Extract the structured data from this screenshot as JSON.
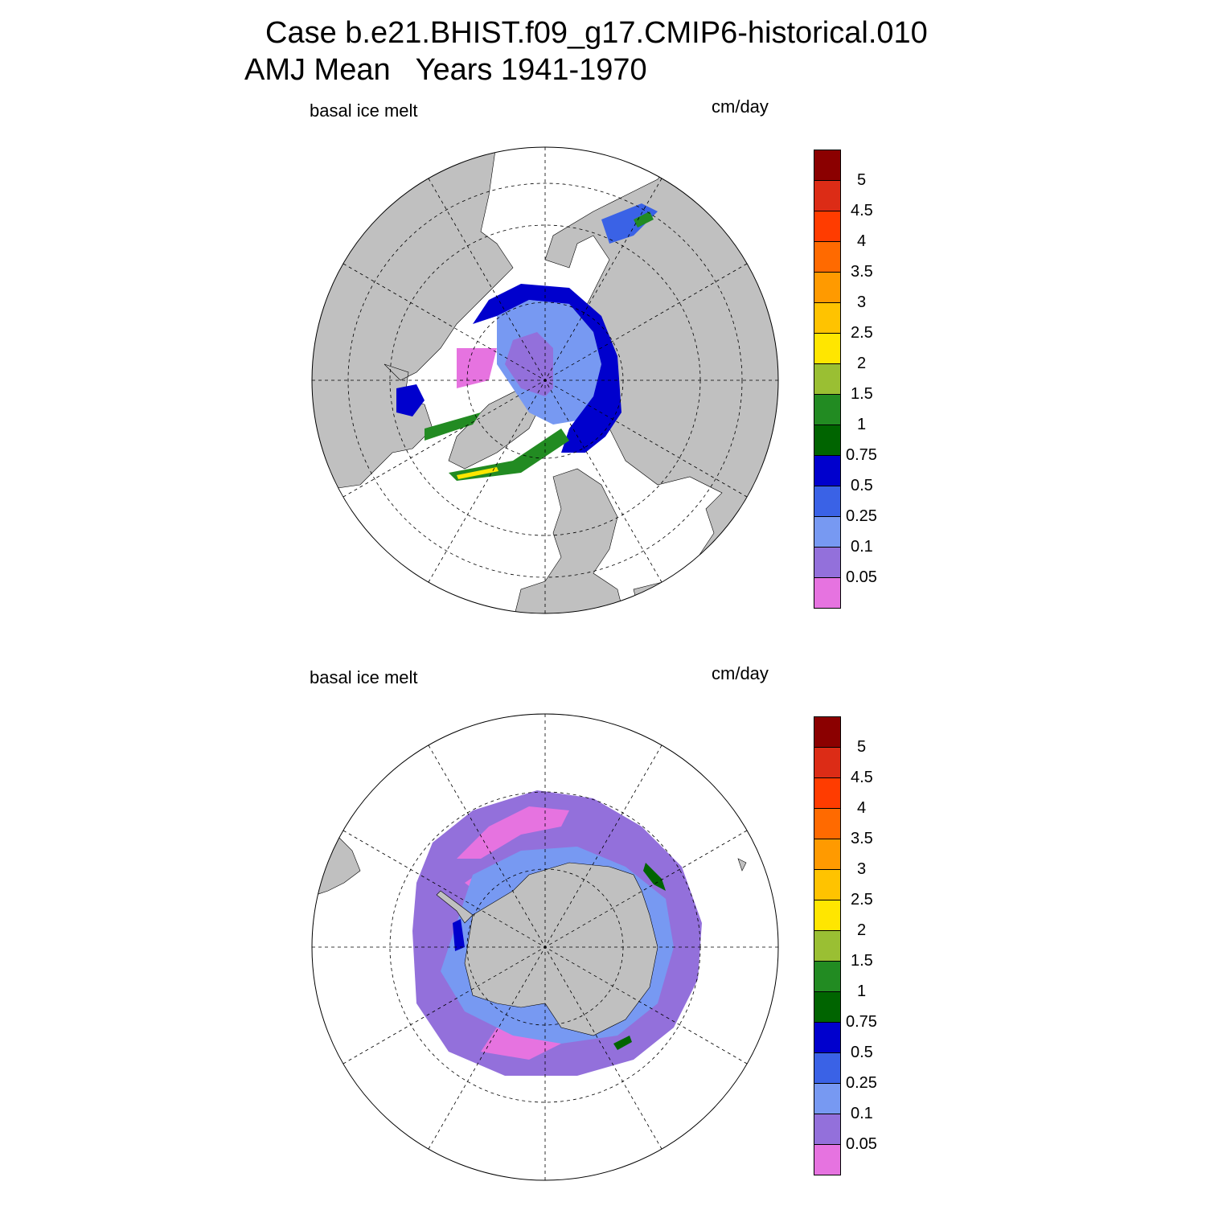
{
  "title": {
    "line1": "Case b.e21.BHIST.f09_g17.CMIP6-historical.010",
    "line2": "AMJ Mean   Years 1941-1970"
  },
  "panels": [
    {
      "id": "arctic",
      "variable": "basal ice melt",
      "units": "cm/day",
      "hemisphere": "north"
    },
    {
      "id": "antarctic",
      "variable": "basal ice melt",
      "units": "cm/day",
      "hemisphere": "south"
    }
  ],
  "colorbar": {
    "labels": [
      "5",
      "4.5",
      "4",
      "3.5",
      "3",
      "2.5",
      "2",
      "1.5",
      "1",
      "0.75",
      "0.5",
      "0.25",
      "0.1",
      "0.05"
    ],
    "colors": [
      "#8b0000",
      "#dc2c16",
      "#ff3c00",
      "#ff6a00",
      "#ff9a00",
      "#ffc300",
      "#ffe600",
      "#9abf33",
      "#228b22",
      "#006400",
      "#0000cd",
      "#3a62e6",
      "#7799f2",
      "#9370db",
      "#e673e0"
    ]
  },
  "map_colors": {
    "land": "#c0c0c0",
    "ocean_no_data": "#ffffff",
    "grid": "#000000"
  }
}
